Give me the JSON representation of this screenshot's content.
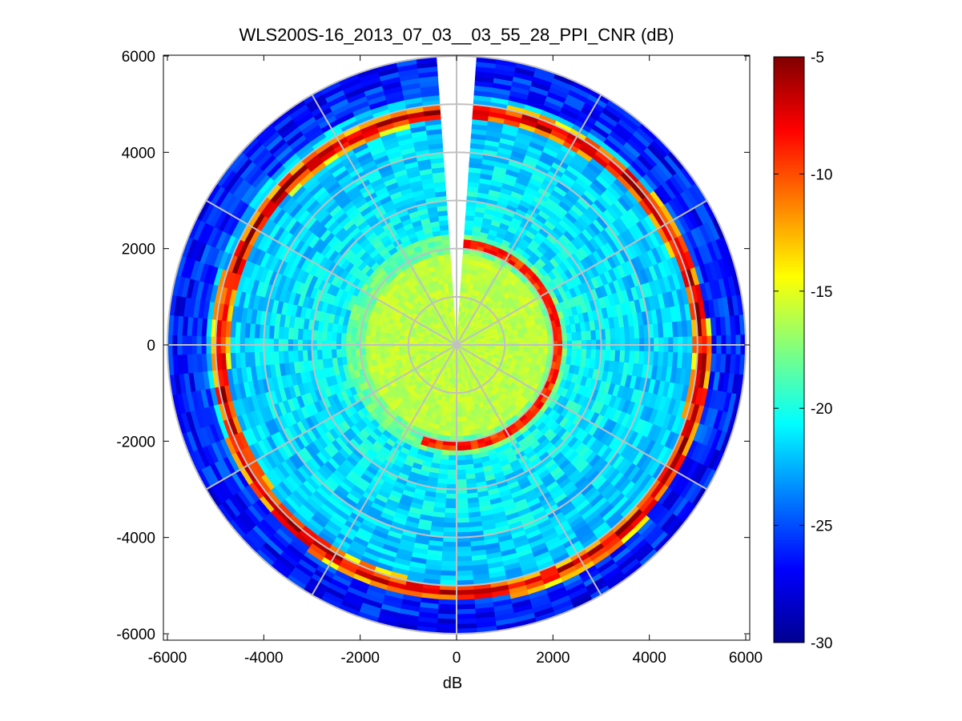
{
  "chart_data": {
    "type": "heatmap",
    "subtype": "polar-ppi",
    "title": "WLS200S-16_2013_07_03__03_55_28_PPI_CNR (dB)",
    "xlabel": "dB",
    "ylabel": "",
    "xlim": [
      -6000,
      6000
    ],
    "ylim": [
      -6000,
      6000
    ],
    "x_ticks": [
      "-6000",
      "-4000",
      "-2000",
      "0",
      "2000",
      "4000",
      "6000"
    ],
    "x_tick_values": [
      -6000,
      -4000,
      -2000,
      0,
      2000,
      4000,
      6000
    ],
    "y_ticks": [
      "6000",
      "4000",
      "2000",
      "0",
      "-2000",
      "-4000",
      "-6000"
    ],
    "y_tick_values": [
      6000,
      4000,
      2000,
      0,
      -2000,
      -4000,
      -6000
    ],
    "colorbar": {
      "colormap": "jet",
      "clim": [
        -30,
        -5
      ],
      "tick_values": [
        -5,
        -10,
        -15,
        -20,
        -25,
        -30
      ],
      "tick_labels": [
        "-5",
        "-10",
        "-15",
        "-20",
        "-25",
        "-30"
      ]
    },
    "max_range_m": 6000,
    "range_rings_m": [
      1000,
      2000,
      3000,
      4000,
      5000,
      6000
    ],
    "spoke_step_deg": 30,
    "missing_sector_deg": [
      -3,
      3
    ],
    "grid": true,
    "radial_cnr_profile_db": [
      {
        "range_m": 0,
        "cnr_db": -17.0
      },
      {
        "range_m": 1000,
        "cnr_db": -16.0
      },
      {
        "range_m": 1900,
        "cnr_db": -15.5
      },
      {
        "range_m": 2000,
        "cnr_db": -17.5
      },
      {
        "range_m": 2300,
        "cnr_db": -20.0
      },
      {
        "range_m": 3000,
        "cnr_db": -21.0
      },
      {
        "range_m": 4000,
        "cnr_db": -21.5
      },
      {
        "range_m": 4600,
        "cnr_db": -22.0
      },
      {
        "range_m": 4800,
        "cnr_db": -9.0
      },
      {
        "range_m": 5000,
        "cnr_db": -6.0
      },
      {
        "range_m": 5300,
        "cnr_db": -24.0
      },
      {
        "range_m": 6000,
        "cnr_db": -26.5
      }
    ],
    "annotations": [
      {
        "feature": "high-CNR arc",
        "range_m": 2100,
        "azimuth_deg": [
          0,
          200
        ],
        "cnr_db": -7
      },
      {
        "feature": "high-CNR ring",
        "range_m": 5000,
        "azimuth_deg": [
          0,
          360
        ],
        "cnr_db": -6
      }
    ]
  }
}
